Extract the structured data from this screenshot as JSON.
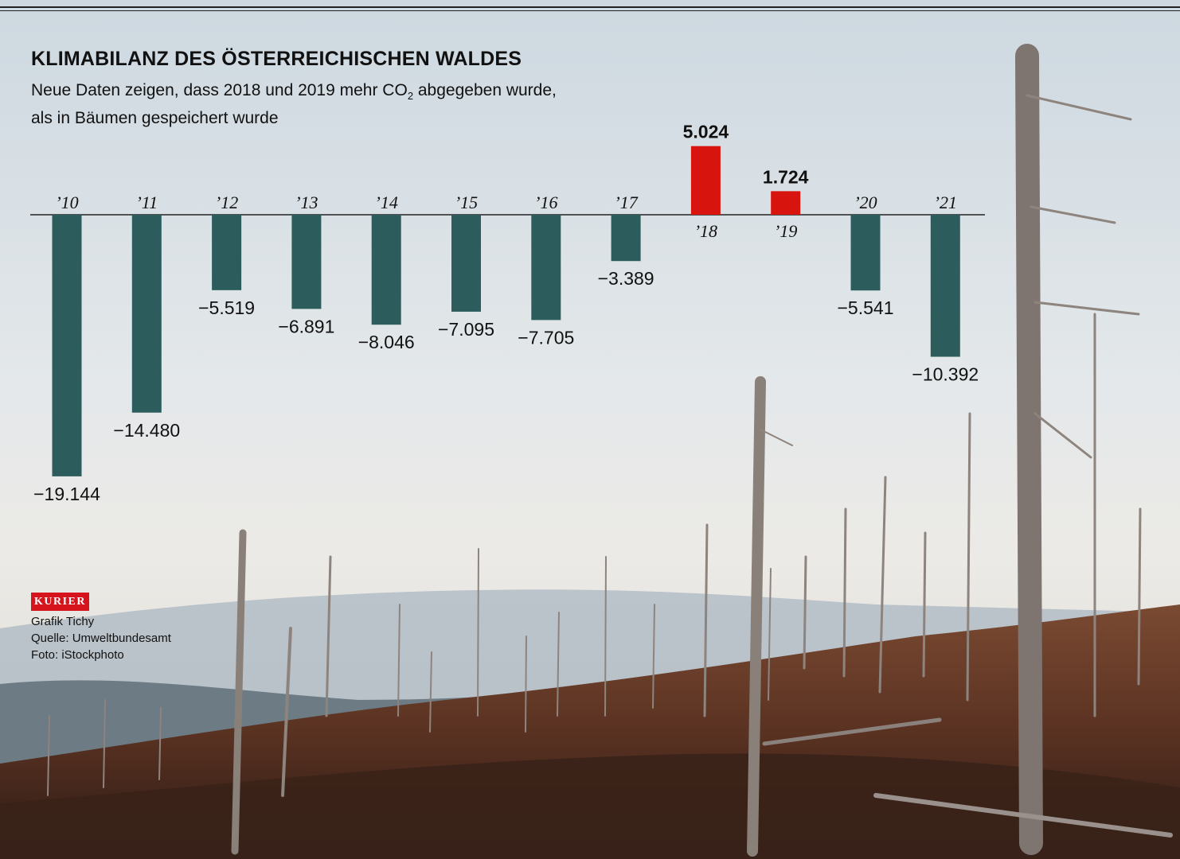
{
  "header": {
    "title": "KLIMABILANZ DES ÖSTERREICHISCHEN WALDES",
    "subtitle_pre": "Neue Daten zeigen, dass 2018 und 2019 mehr CO",
    "subtitle_sub": "2",
    "subtitle_post": " abgegeben wurde,",
    "subtitle_line2": "als in Bäumen gespeichert wurde"
  },
  "credits": {
    "logo": "KURIER",
    "line1": "Grafik Tichy",
    "line2": "Quelle: Umweltbundesamt",
    "line3": "Foto: iStockphoto"
  },
  "colors": {
    "negative": "#2c5c5c",
    "positive": "#d8140f",
    "text": "#111111"
  },
  "chart_data": {
    "type": "bar",
    "categories": [
      "’10",
      "’11",
      "’12",
      "’13",
      "’14",
      "’15",
      "’16",
      "’17",
      "’18",
      "’19",
      "’20",
      "’21"
    ],
    "values": [
      -19144,
      -14480,
      -5519,
      -6891,
      -8046,
      -7095,
      -7705,
      -3389,
      5024,
      1724,
      -5541,
      -10392
    ],
    "value_labels": [
      "−19.144",
      "−14.480",
      "−5.519",
      "−6.891",
      "−8.046",
      "−7.095",
      "−7.705",
      "−3.389",
      "5.024",
      "1.724",
      "−5.541",
      "−10.392"
    ],
    "ylim": [
      -20000,
      6000
    ],
    "grid": false,
    "legend": "none"
  }
}
